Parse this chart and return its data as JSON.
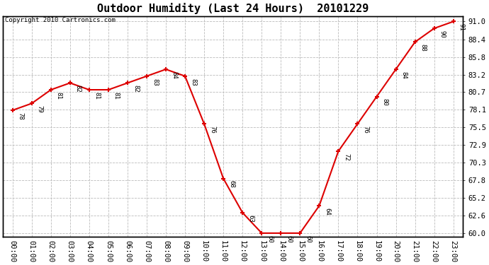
{
  "title": "Outdoor Humidity (Last 24 Hours)  20101229",
  "copyright": "Copyright 2010 Cartronics.com",
  "x_labels": [
    "00:00",
    "01:00",
    "02:00",
    "03:00",
    "04:00",
    "05:00",
    "06:00",
    "07:00",
    "08:00",
    "09:00",
    "10:00",
    "11:00",
    "12:00",
    "13:00",
    "14:00",
    "15:00",
    "16:00",
    "17:00",
    "18:00",
    "19:00",
    "20:00",
    "21:00",
    "22:00",
    "23:00"
  ],
  "y_values": [
    78,
    79,
    81,
    82,
    81,
    81,
    82,
    83,
    84,
    83,
    76,
    68,
    63,
    60,
    60,
    60,
    64,
    72,
    76,
    80,
    84,
    88,
    90,
    91
  ],
  "y_labels": [
    60.0,
    62.6,
    65.2,
    67.8,
    70.3,
    72.9,
    75.5,
    78.1,
    80.7,
    83.2,
    85.8,
    88.4,
    91.0
  ],
  "ylim": [
    59.5,
    91.8
  ],
  "line_color": "#dd0000",
  "marker_color": "#dd0000",
  "bg_color": "#ffffff",
  "plot_bg_color": "#ffffff",
  "grid_color": "#bbbbbb",
  "title_fontsize": 11,
  "copyright_fontsize": 6.5,
  "label_fontsize": 6.5,
  "tick_fontsize": 7.5
}
